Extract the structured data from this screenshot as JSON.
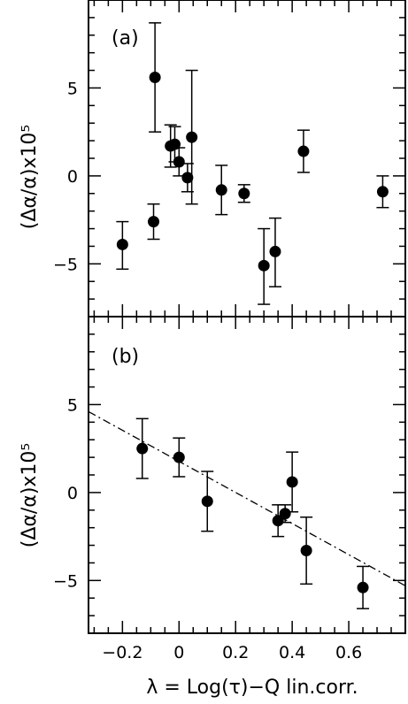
{
  "chart_data": [
    {
      "type": "scatter",
      "panel_label": "(a)",
      "ylabel": "(Δα/α)x10⁵",
      "xlabel": "",
      "xlim": [
        -0.32,
        0.8
      ],
      "ylim": [
        -8,
        10
      ],
      "yticks": [
        -5,
        0,
        5
      ],
      "y_tick_labels": [
        "−5",
        "0",
        "5"
      ],
      "grid": false,
      "points": [
        {
          "x": -0.2,
          "y": -3.9,
          "err_low": 1.4,
          "err_high": 1.3
        },
        {
          "x": -0.09,
          "y": -2.6,
          "err_low": 1.0,
          "err_high": 1.0
        },
        {
          "x": -0.085,
          "y": 5.6,
          "err_low": 3.1,
          "err_high": 3.1
        },
        {
          "x": -0.03,
          "y": 1.7,
          "err_low": 1.2,
          "err_high": 1.2
        },
        {
          "x": -0.015,
          "y": 1.8,
          "err_low": 1.0,
          "err_high": 1.0
        },
        {
          "x": 0.0,
          "y": 0.8,
          "err_low": 0.8,
          "err_high": 0.8
        },
        {
          "x": 0.03,
          "y": -0.1,
          "err_low": 0.8,
          "err_high": 0.8
        },
        {
          "x": 0.045,
          "y": 2.2,
          "err_low": 3.8,
          "err_high": 3.8
        },
        {
          "x": 0.15,
          "y": -0.8,
          "err_low": 1.4,
          "err_high": 1.4
        },
        {
          "x": 0.23,
          "y": -1.0,
          "err_low": 0.5,
          "err_high": 0.5
        },
        {
          "x": 0.3,
          "y": -5.1,
          "err_low": 2.2,
          "err_high": 2.1
        },
        {
          "x": 0.34,
          "y": -4.3,
          "err_low": 2.0,
          "err_high": 1.9
        },
        {
          "x": 0.44,
          "y": 1.4,
          "err_low": 1.2,
          "err_high": 1.2
        },
        {
          "x": 0.72,
          "y": -0.9,
          "err_low": 0.9,
          "err_high": 0.9
        }
      ]
    },
    {
      "type": "scatter",
      "panel_label": "(b)",
      "ylabel": "(Δα/α)x10⁵",
      "xlabel": "λ = Log(τ)−Q lin.corr.",
      "xlim": [
        -0.32,
        0.8
      ],
      "ylim": [
        -8,
        10
      ],
      "xticks": [
        -0.2,
        0,
        0.2,
        0.4,
        0.6
      ],
      "x_tick_labels": [
        "−0.2",
        "0",
        "0.2",
        "0.4",
        "0.6"
      ],
      "yticks": [
        -5,
        0,
        5
      ],
      "y_tick_labels": [
        "−5",
        "0",
        "5"
      ],
      "grid": false,
      "points": [
        {
          "x": -0.13,
          "y": 2.5,
          "err_low": 1.7,
          "err_high": 1.7
        },
        {
          "x": 0.0,
          "y": 2.0,
          "err_low": 1.1,
          "err_high": 1.1
        },
        {
          "x": 0.1,
          "y": -0.5,
          "err_low": 1.7,
          "err_high": 1.7
        },
        {
          "x": 0.35,
          "y": -1.6,
          "err_low": 0.9,
          "err_high": 0.9
        },
        {
          "x": 0.375,
          "y": -1.2,
          "err_low": 0.5,
          "err_high": 0.5
        },
        {
          "x": 0.4,
          "y": 0.6,
          "err_low": 1.7,
          "err_high": 1.7
        },
        {
          "x": 0.45,
          "y": -3.3,
          "err_low": 1.9,
          "err_high": 1.9
        },
        {
          "x": 0.65,
          "y": -5.4,
          "err_low": 1.2,
          "err_high": 1.2
        }
      ],
      "fit_line": {
        "style": "dash-dot",
        "x": [
          -0.32,
          0.8
        ],
        "y": [
          4.6,
          -5.3
        ]
      }
    }
  ]
}
